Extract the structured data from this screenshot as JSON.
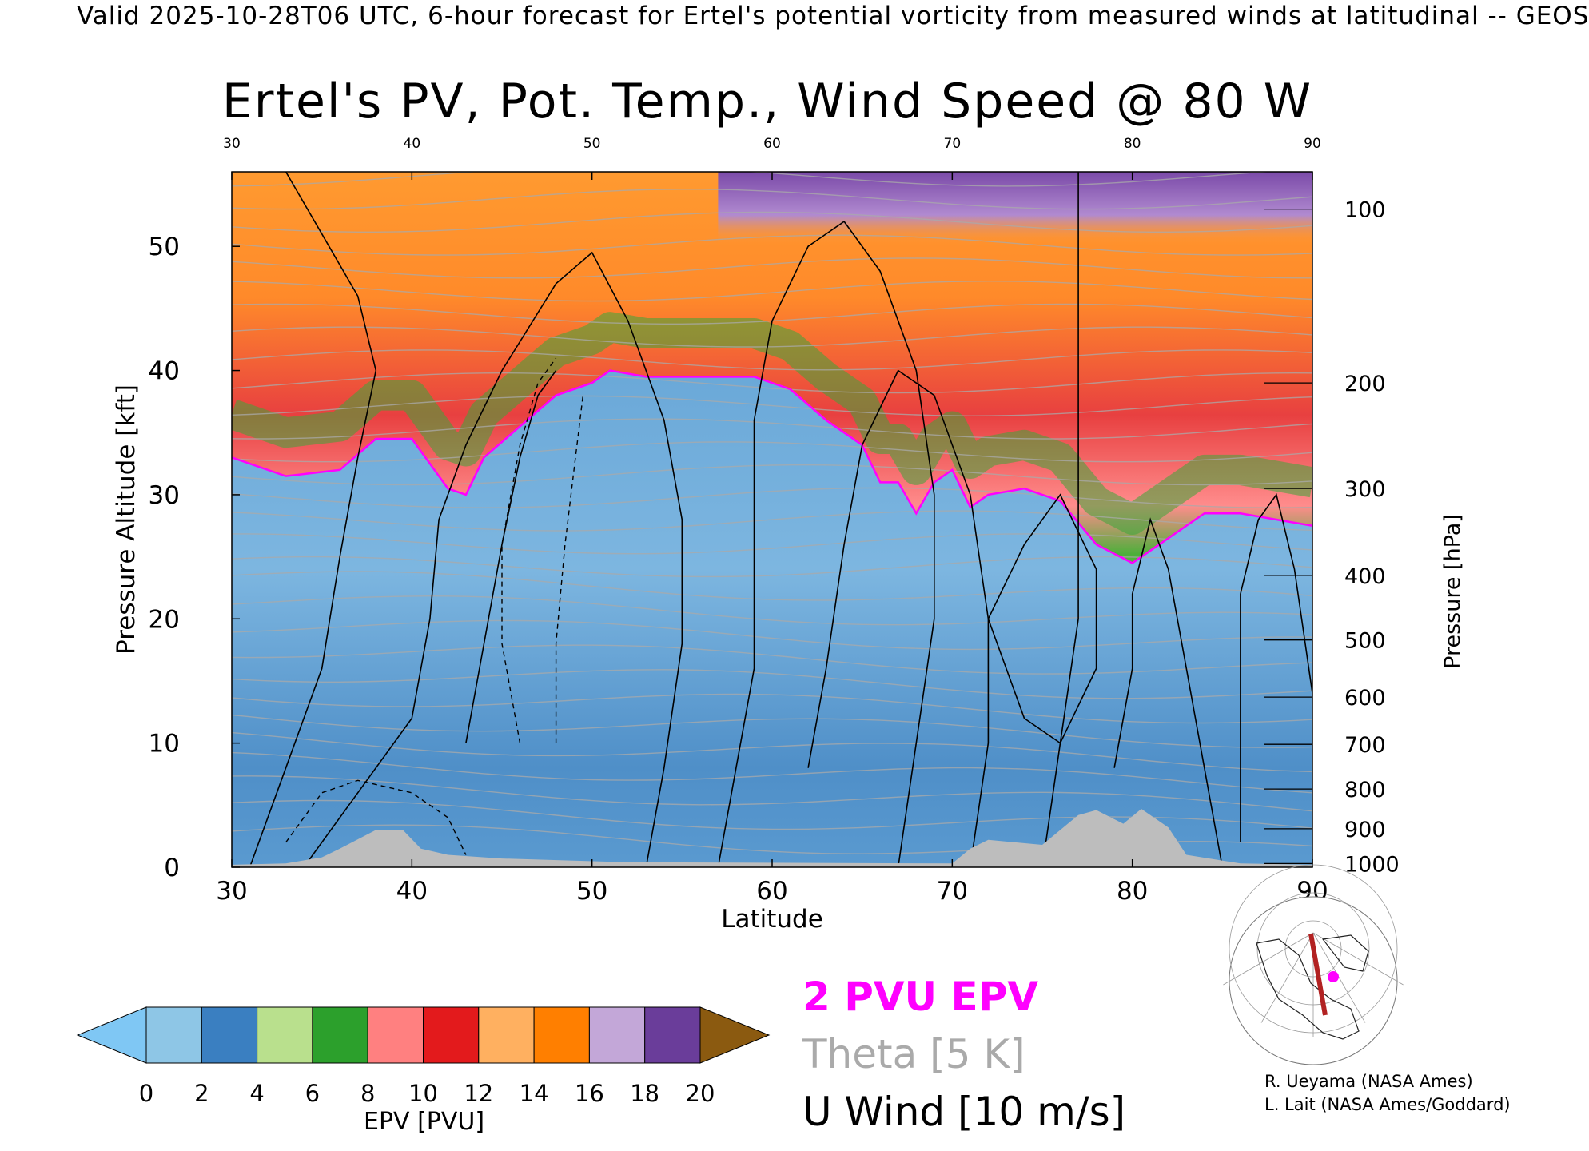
{
  "header": {
    "line": "Valid 2025-10-28T06 UTC, 6-hour forecast for Ertel's potential vorticity from measured winds at latitudinal -- GEOS"
  },
  "chart_data": {
    "type": "heatmap",
    "title": "Ertel's PV, Pot. Temp., Wind Speed @ 80 W",
    "xlabel": "Latitude",
    "ylabel": "Pressure Altitude [kft]",
    "y2label": "Pressure [hPa]",
    "xlim": [
      30,
      90
    ],
    "ylim": [
      0,
      56
    ],
    "x_ticks": [
      30,
      40,
      50,
      60,
      70,
      80,
      90
    ],
    "y_ticks": [
      0,
      10,
      20,
      30,
      40,
      50
    ],
    "pressure_ticks": [
      {
        "label": "100",
        "kft": 53.0
      },
      {
        "label": "200",
        "kft": 39.0
      },
      {
        "label": "300",
        "kft": 30.5
      },
      {
        "label": "400",
        "kft": 23.5
      },
      {
        "label": "500",
        "kft": 18.3
      },
      {
        "label": "600",
        "kft": 13.7
      },
      {
        "label": "700",
        "kft": 9.9
      },
      {
        "label": "800",
        "kft": 6.3
      },
      {
        "label": "900",
        "kft": 3.1
      },
      {
        "label": "1000",
        "kft": 0.3
      }
    ],
    "tropopause_2pvu_kft": [
      [
        30,
        33
      ],
      [
        33,
        31.5
      ],
      [
        36,
        32
      ],
      [
        38,
        34.5
      ],
      [
        40,
        34.5
      ],
      [
        42,
        30.5
      ],
      [
        43,
        30
      ],
      [
        44,
        33
      ],
      [
        46,
        35.5
      ],
      [
        48,
        38
      ],
      [
        50,
        39
      ],
      [
        51,
        40
      ],
      [
        53,
        39.5
      ],
      [
        56,
        39.5
      ],
      [
        59,
        39.5
      ],
      [
        61,
        38.5
      ],
      [
        63,
        36
      ],
      [
        65,
        34
      ],
      [
        66,
        31
      ],
      [
        67,
        31
      ],
      [
        68,
        28.5
      ],
      [
        69,
        31
      ],
      [
        70,
        32
      ],
      [
        71,
        29
      ],
      [
        72,
        30
      ],
      [
        74,
        30.5
      ],
      [
        76,
        29.5
      ],
      [
        78,
        26
      ],
      [
        80,
        24.5
      ],
      [
        82,
        26.5
      ],
      [
        84,
        28.5
      ],
      [
        86,
        28.5
      ],
      [
        88,
        28
      ],
      [
        90,
        27.5
      ]
    ],
    "surface_kft": [
      [
        30,
        0.2
      ],
      [
        33,
        0.3
      ],
      [
        35,
        0.8
      ],
      [
        36,
        1.5
      ],
      [
        38,
        3.0
      ],
      [
        39.5,
        3.0
      ],
      [
        40.5,
        1.5
      ],
      [
        42,
        1.0
      ],
      [
        45,
        0.7
      ],
      [
        52,
        0.4
      ],
      [
        70,
        0.3
      ],
      [
        71,
        1.5
      ],
      [
        72,
        2.2
      ],
      [
        75,
        1.8
      ],
      [
        77,
        4.2
      ],
      [
        78,
        4.6
      ],
      [
        79.5,
        3.5
      ],
      [
        80.5,
        4.7
      ],
      [
        82,
        3.2
      ],
      [
        83,
        1.0
      ],
      [
        86,
        0.3
      ],
      [
        90,
        0.2
      ]
    ],
    "wind_contour_levels_m_s": [
      -10,
      0,
      10,
      20,
      30
    ],
    "theta_contour_interval_K": 5,
    "colorbar": {
      "label": "EPV [PVU]",
      "ticks": [
        0,
        2,
        4,
        6,
        8,
        10,
        12,
        14,
        16,
        18,
        20
      ],
      "extend": "both",
      "colors": [
        "#8ec6e6",
        "#3a7fc1",
        "#b9e08d",
        "#2ca02c",
        "#ff8080",
        "#e31a1c",
        "#ffb060",
        "#ff7f00",
        "#c3a7d8",
        "#6a3d9a",
        "#fff590",
        "#8b5a10"
      ],
      "under_color": "#7fc7f4",
      "over_color": "#8b5a10"
    }
  },
  "legend": {
    "pv": "2 PVU EPV",
    "theta": "Theta [5 K]",
    "wind": "U Wind [10 m/s]"
  },
  "credits": {
    "line1": "R. Ueyama (NASA Ames)",
    "line2": "L. Lait (NASA Ames/Goddard)"
  },
  "colors": {
    "tropopause": "#ff00ff",
    "theta": "#aaaaaa",
    "wind": "#000000",
    "terrain": "#bdbdbd",
    "map_track": "#b22222",
    "map_marker": "#ff00ff"
  }
}
